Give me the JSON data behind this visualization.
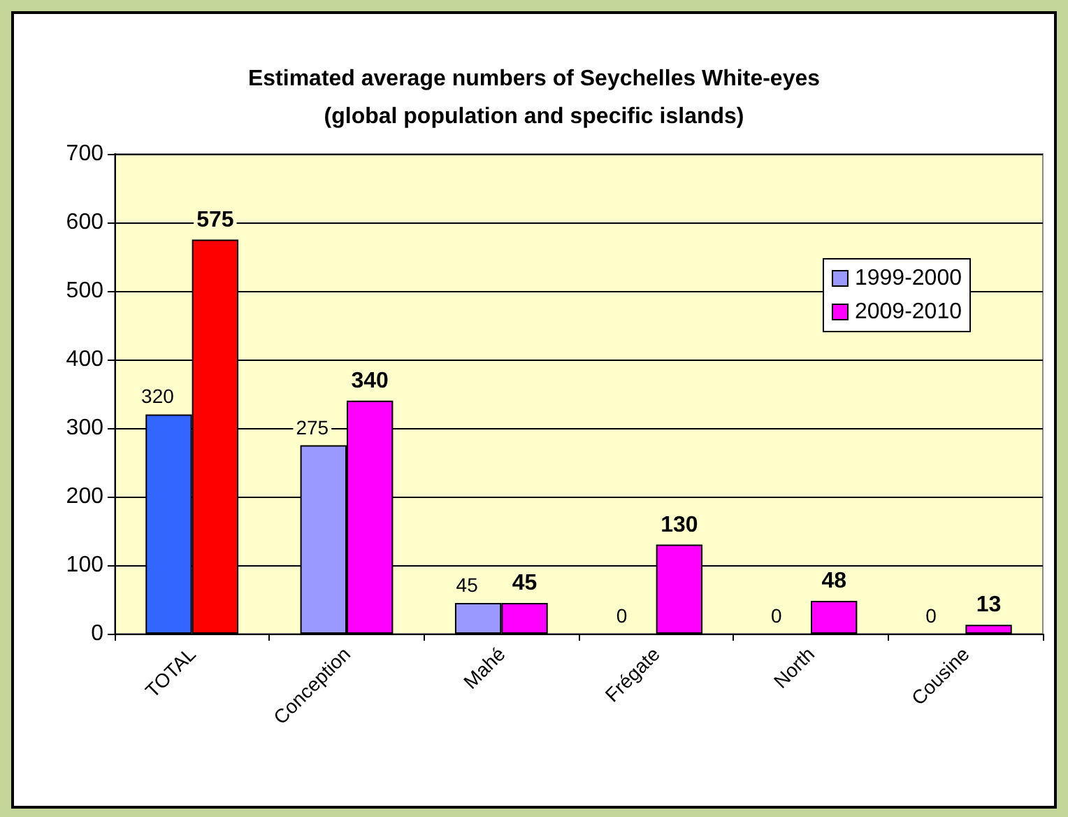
{
  "chart_data": {
    "type": "bar",
    "title": "Estimated average numbers of Seychelles White-eyes\n(global population and specific islands)",
    "categories": [
      "TOTAL",
      "Conception",
      "Mahé",
      "Frégate",
      "North",
      "Cousine"
    ],
    "series": [
      {
        "name": "1999-2000",
        "color": "#9999ff",
        "colors": [
          "#3366ff",
          "#9999ff",
          "#9999ff",
          "#9999ff",
          "#9999ff",
          "#9999ff"
        ],
        "values": [
          320,
          275,
          45,
          0,
          0,
          0
        ]
      },
      {
        "name": "2009-2010",
        "color": "#ff00ff",
        "colors": [
          "#ff0000",
          "#ff00ff",
          "#ff00ff",
          "#ff00ff",
          "#ff00ff",
          "#ff00ff"
        ],
        "values": [
          575,
          340,
          45,
          130,
          48,
          13
        ]
      }
    ],
    "ylim": [
      0,
      700
    ],
    "yticks": [
      0,
      100,
      200,
      300,
      400,
      500,
      600,
      700
    ],
    "grid": "y",
    "legend": "right",
    "data_labels": true
  }
}
